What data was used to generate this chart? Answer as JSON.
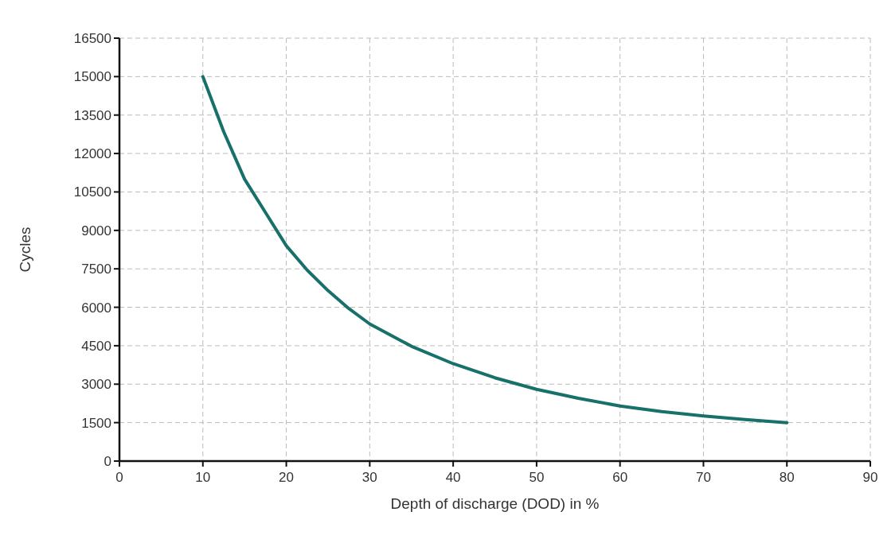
{
  "chart_data": {
    "type": "line",
    "xlabel": "Depth of discharge (DOD) in %",
    "ylabel": "Cycles",
    "x": [
      10,
      12.5,
      15,
      17.5,
      20,
      22.5,
      25,
      27.5,
      30,
      35,
      40,
      45,
      50,
      55,
      60,
      65,
      70,
      75,
      80
    ],
    "series": [
      {
        "color": "#17706a",
        "values": [
          15000,
          12850,
          11000,
          9700,
          8400,
          7450,
          6650,
          5950,
          5350,
          4480,
          3800,
          3250,
          2800,
          2450,
          2150,
          1930,
          1760,
          1620,
          1500
        ]
      }
    ],
    "xlim": [
      0,
      90
    ],
    "xticks": [
      0,
      10,
      20,
      30,
      40,
      50,
      60,
      70,
      80,
      90
    ],
    "ylim": [
      0,
      16500
    ],
    "yticks": [
      0,
      1500,
      3000,
      4500,
      6000,
      7500,
      9000,
      10500,
      12000,
      13500,
      15000,
      16500
    ],
    "grid": true,
    "marker": "none",
    "line_style": "solid"
  }
}
